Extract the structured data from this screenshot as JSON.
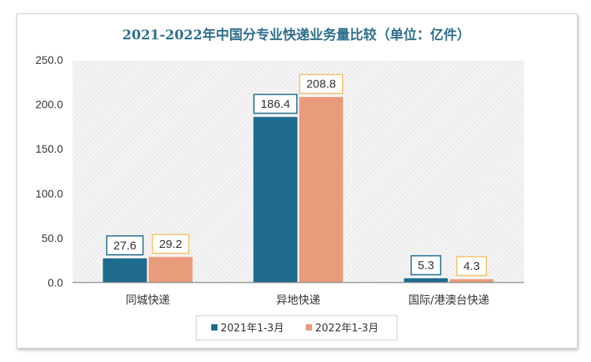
{
  "chart_data": {
    "type": "bar",
    "title": "2021-2022年中国分专业快递业务量比较（单位：亿件）",
    "categories": [
      "同城快递",
      "异地快递",
      "国际/港澳台快递"
    ],
    "series": [
      {
        "name": "2021年1-3月",
        "values": [
          27.6,
          186.4,
          5.3
        ],
        "color": "#1f6b8e",
        "label_border": "#1f6b8e"
      },
      {
        "name": "2022年1-3月",
        "values": [
          29.2,
          208.8,
          4.3
        ],
        "color": "#e89c7c",
        "label_border": "#f5c26b"
      }
    ],
    "value_labels": [
      [
        "27.6",
        "186.4",
        "5.3"
      ],
      [
        "29.2",
        "208.8",
        "4.3"
      ]
    ],
    "y_ticks": [
      "0.0",
      "50.0",
      "100.0",
      "150.0",
      "200.0",
      "250.0"
    ],
    "ylim": [
      0,
      250
    ],
    "xlabel": "",
    "ylabel": "",
    "grid": false,
    "legend_position": "bottom"
  }
}
